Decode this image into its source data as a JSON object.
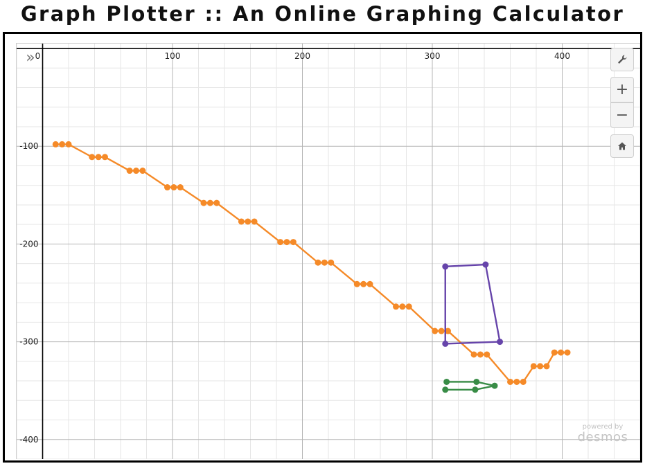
{
  "header": {
    "title": "Graph Plotter :: An Online Graphing Calculator"
  },
  "calculator": {
    "expand_icon": "chevron-double-right-icon",
    "controls": {
      "settings_icon": "wrench-icon",
      "zoom_in_label": "+",
      "zoom_out_label": "−",
      "home_icon": "home-icon"
    },
    "brand": {
      "powered_by": "powered by",
      "name": "desmos"
    }
  },
  "colors": {
    "orange": "#f58a28",
    "purple": "#6644aa",
    "green": "#388c46",
    "grid_minor": "#e6e6e6",
    "grid_major": "#b5b5b5",
    "axis": "#000000"
  },
  "chart_data": {
    "type": "scatter",
    "title": "",
    "xlabel": "",
    "ylabel": "",
    "xlim": [
      -20,
      460
    ],
    "ylim": [
      -420,
      5
    ],
    "grid": true,
    "x_ticks": [
      0,
      100,
      200,
      300,
      400
    ],
    "y_ticks": [
      -100,
      -200,
      -300,
      -400
    ],
    "x_tick_labels": [
      "0",
      "100",
      "200",
      "300",
      "400"
    ],
    "y_tick_labels": [
      "-100",
      "-200",
      "-300",
      "-400"
    ],
    "series": [
      {
        "color": "#f58a28",
        "connected": true,
        "points": [
          [
            10,
            -98
          ],
          [
            15,
            -98
          ],
          [
            20,
            -98
          ],
          [
            38,
            -111
          ],
          [
            43,
            -111
          ],
          [
            48,
            -111
          ],
          [
            67,
            -125
          ],
          [
            72,
            -125
          ],
          [
            77,
            -125
          ],
          [
            96,
            -142
          ],
          [
            101,
            -142
          ],
          [
            106,
            -142
          ],
          [
            124,
            -158
          ],
          [
            129,
            -158
          ],
          [
            134,
            -158
          ],
          [
            153,
            -177
          ],
          [
            158,
            -177
          ],
          [
            163,
            -177
          ],
          [
            183,
            -198
          ],
          [
            188,
            -198
          ],
          [
            193,
            -198
          ],
          [
            212,
            -219
          ],
          [
            217,
            -219
          ],
          [
            222,
            -219
          ],
          [
            242,
            -241
          ],
          [
            247,
            -241
          ],
          [
            252,
            -241
          ],
          [
            272,
            -264
          ],
          [
            277,
            -264
          ],
          [
            282,
            -264
          ],
          [
            302,
            -289
          ],
          [
            307,
            -289
          ],
          [
            312,
            -289
          ],
          [
            332,
            -313
          ],
          [
            337,
            -313
          ],
          [
            342,
            -313
          ],
          [
            360,
            -341
          ],
          [
            365,
            -341
          ],
          [
            370,
            -341
          ],
          [
            378,
            -325
          ],
          [
            383,
            -325
          ],
          [
            388,
            -325
          ],
          [
            394,
            -311
          ],
          [
            399,
            -311
          ],
          [
            404,
            -311
          ]
        ]
      },
      {
        "color": "#6644aa",
        "connected": true,
        "points": [
          [
            310,
            -223
          ],
          [
            341,
            -221
          ],
          [
            352,
            -300
          ],
          [
            310,
            -302
          ],
          [
            310,
            -223
          ]
        ]
      },
      {
        "color": "#388c46",
        "connected": true,
        "points": [
          [
            311,
            -341
          ],
          [
            334,
            -341
          ],
          [
            348,
            -345
          ],
          [
            333,
            -349
          ],
          [
            310,
            -349
          ]
        ]
      }
    ]
  }
}
